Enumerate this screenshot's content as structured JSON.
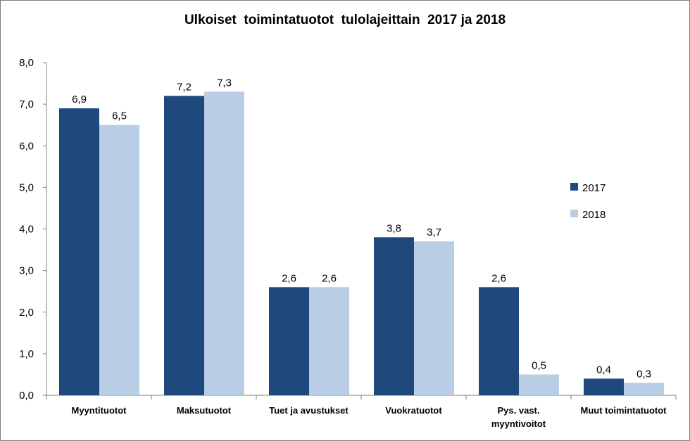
{
  "chart_data": {
    "type": "bar",
    "title": "Ulkoiset  toimintatuotot  tulolajeittain  2017 ja 2018",
    "categories": [
      [
        "Myyntituotot"
      ],
      [
        "Maksutuotot"
      ],
      [
        "Tuet ja avustukset"
      ],
      [
        "Vuokratuotot"
      ],
      [
        "Pys. vast.",
        "myyntivoitot"
      ],
      [
        "Muut toimintatuotot"
      ]
    ],
    "series": [
      {
        "name": "2017",
        "color": "#1f497d",
        "values": [
          6.9,
          7.2,
          2.6,
          3.8,
          2.6,
          0.4
        ],
        "labels": [
          "6,9",
          "7,2",
          "2,6",
          "3,8",
          "2,6",
          "0,4"
        ]
      },
      {
        "name": "2018",
        "color": "#b9cde5",
        "values": [
          6.5,
          7.3,
          2.6,
          3.7,
          0.5,
          0.3
        ],
        "labels": [
          "6,5",
          "7,3",
          "2,6",
          "3,7",
          "0,5",
          "0,3"
        ]
      }
    ],
    "ylim": [
      0,
      8
    ],
    "yticks": [
      0,
      1,
      2,
      3,
      4,
      5,
      6,
      7,
      8
    ],
    "ytick_labels": [
      "0,0",
      "1,0",
      "2,0",
      "3,0",
      "4,0",
      "5,0",
      "6,0",
      "7,0",
      "8,0"
    ],
    "grid": false,
    "legend": "right"
  }
}
